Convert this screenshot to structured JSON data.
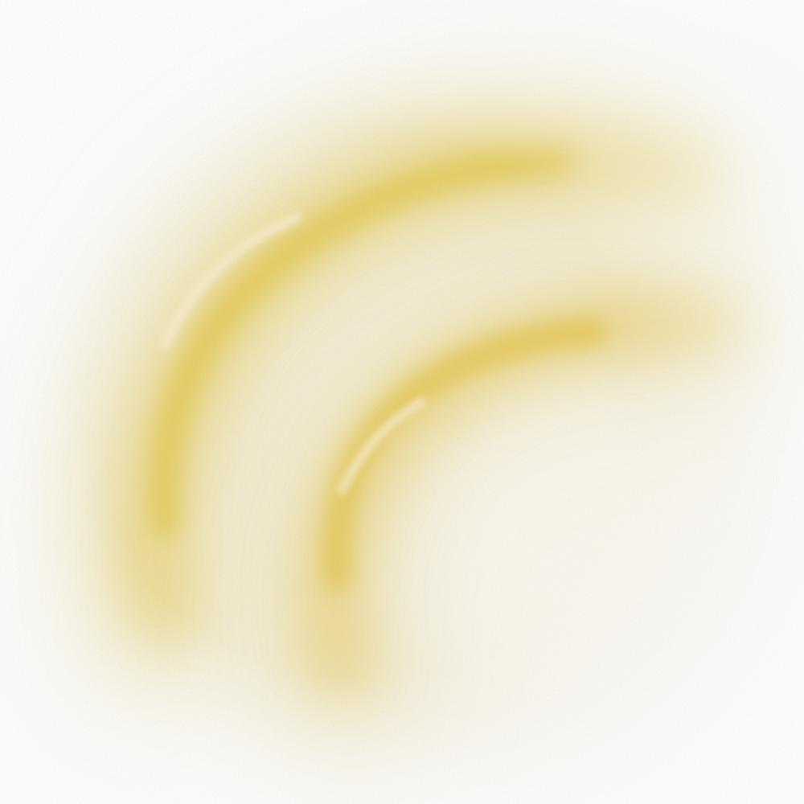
{
  "artwork": {
    "description_shown": "",
    "colors": {
      "background": "#ffffff",
      "haze": "#f4eed8",
      "glow_light": "#f6ecc4",
      "glow_mid": "#ead276",
      "glow_deep": "#e3c13d",
      "highlight": "#fbf3dc"
    },
    "shapes": [
      "outer-arc",
      "inner-arc"
    ],
    "texture": "grain"
  }
}
